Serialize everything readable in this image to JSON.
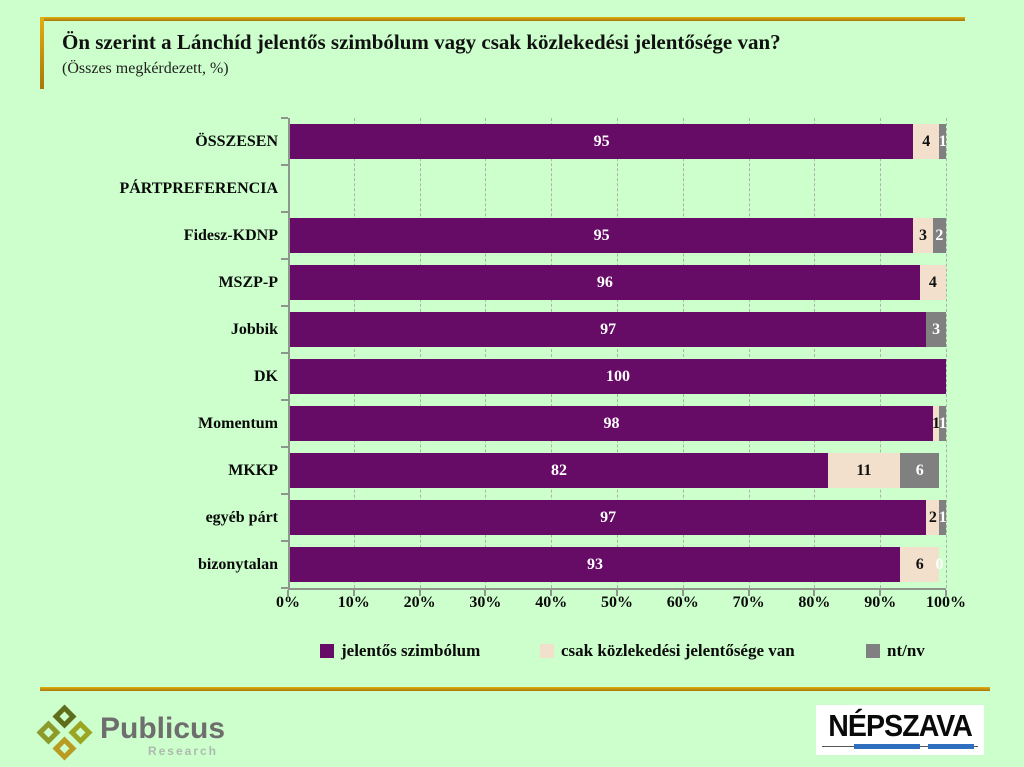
{
  "title": "Ön szerint a Lánchíd jelentős szimbólum vagy csak közlekedési jelentősége van?",
  "subtitle": "(Összes megkérdezett, %)",
  "colors": {
    "background": "#CCFFCC",
    "accent_gold": "#C8930A",
    "bar_symbol": "#660B66",
    "bar_transport": "#F2E0CD",
    "bar_ntnv": "#808080",
    "axis": "#8C968C",
    "gridline": "#A9B3A9"
  },
  "chart_data": {
    "type": "bar",
    "orientation": "horizontal",
    "stacked": true,
    "grid": "vertical dashed, every 10%",
    "xlim": [
      0,
      100
    ],
    "x_ticks": [
      "0%",
      "10%",
      "20%",
      "30%",
      "40%",
      "50%",
      "60%",
      "70%",
      "80%",
      "90%",
      "100%"
    ],
    "categories": [
      "ÖSSZESEN",
      "PÁRTPREFERENCIA",
      "Fidesz-KDNP",
      "MSZP-P",
      "Jobbik",
      "DK",
      "Momentum",
      "MKKP",
      "egyéb párt",
      "bizonytalan"
    ],
    "series": [
      {
        "name": "jelentős szimbólum",
        "color": "#660B66",
        "label_color": "light",
        "values": [
          95,
          null,
          95,
          96,
          97,
          100,
          98,
          82,
          97,
          93
        ]
      },
      {
        "name": "csak közlekedési jelentősége van",
        "color": "#F2E0CD",
        "label_color": "dark",
        "values": [
          4,
          null,
          3,
          4,
          0,
          0,
          1,
          11,
          2,
          6
        ]
      },
      {
        "name": "nt/nv",
        "color": "#808080",
        "label_color": "light",
        "values": [
          1,
          null,
          2,
          0,
          3,
          0,
          1,
          6,
          1,
          0
        ]
      }
    ],
    "value_labels": [
      [
        "95",
        "4",
        "1"
      ],
      [
        "",
        "",
        ""
      ],
      [
        "95",
        "3",
        "2"
      ],
      [
        "96",
        "4",
        ""
      ],
      [
        "97",
        "",
        "3"
      ],
      [
        "100",
        "",
        ""
      ],
      [
        "98",
        "1",
        "1"
      ],
      [
        "82",
        "11",
        "6"
      ],
      [
        "97",
        "2",
        "1"
      ],
      [
        "93",
        "6",
        "0"
      ]
    ]
  },
  "legend": [
    {
      "label": "jelentős szimbólum",
      "color": "#660B66"
    },
    {
      "label": "csak közlekedési jelentősége van",
      "color": "#F2E0CD"
    },
    {
      "label": "nt/nv",
      "color": "#808080"
    }
  ],
  "footer": {
    "publicus_name": "Publicus",
    "publicus_sub": "Research",
    "nepszava_name": "NÉPSZAVA"
  }
}
